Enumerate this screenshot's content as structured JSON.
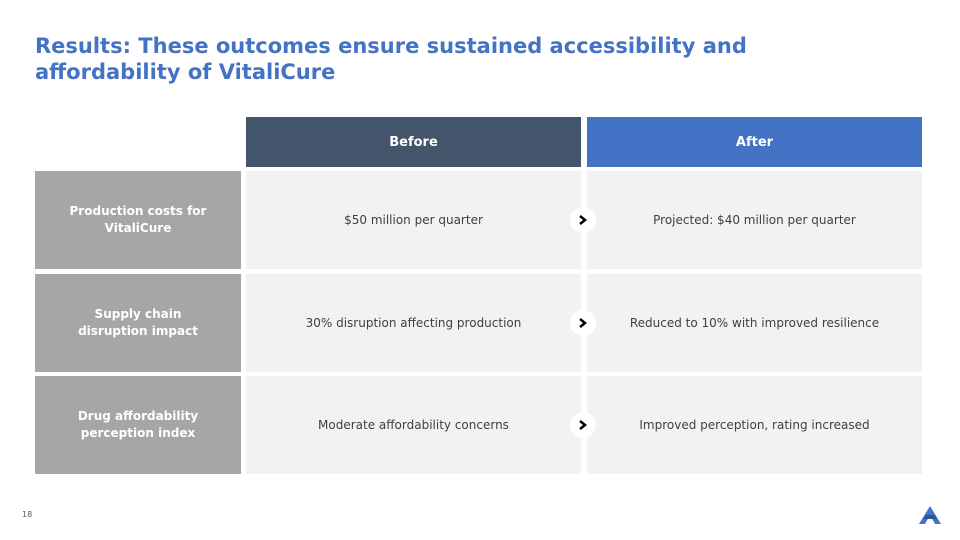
{
  "title": "Results: These outcomes ensure sustained accessibility and affordability of VitaliCure",
  "table": {
    "headers": {
      "before": "Before",
      "after": "After"
    },
    "rows": [
      {
        "label": "Production costs for VitaliCure",
        "before": "$50 million per quarter",
        "after": "Projected: $40 million per quarter"
      },
      {
        "label": "Supply chain disruption impact",
        "before": "30% disruption affecting production",
        "after": "Reduced to 10% with improved resilience"
      },
      {
        "label": "Drug affordability perception index",
        "before": "Moderate affordability concerns",
        "after": "Improved perception, rating increased"
      }
    ]
  },
  "arrow_icon": "chevron-right-icon",
  "page_number": "18",
  "logo_icon": "brand-logo-icon",
  "colors": {
    "accent": "#4472c4",
    "header_before": "#44546a",
    "label_bg": "#a6a6a6",
    "cell_bg": "#f2f2f2"
  }
}
